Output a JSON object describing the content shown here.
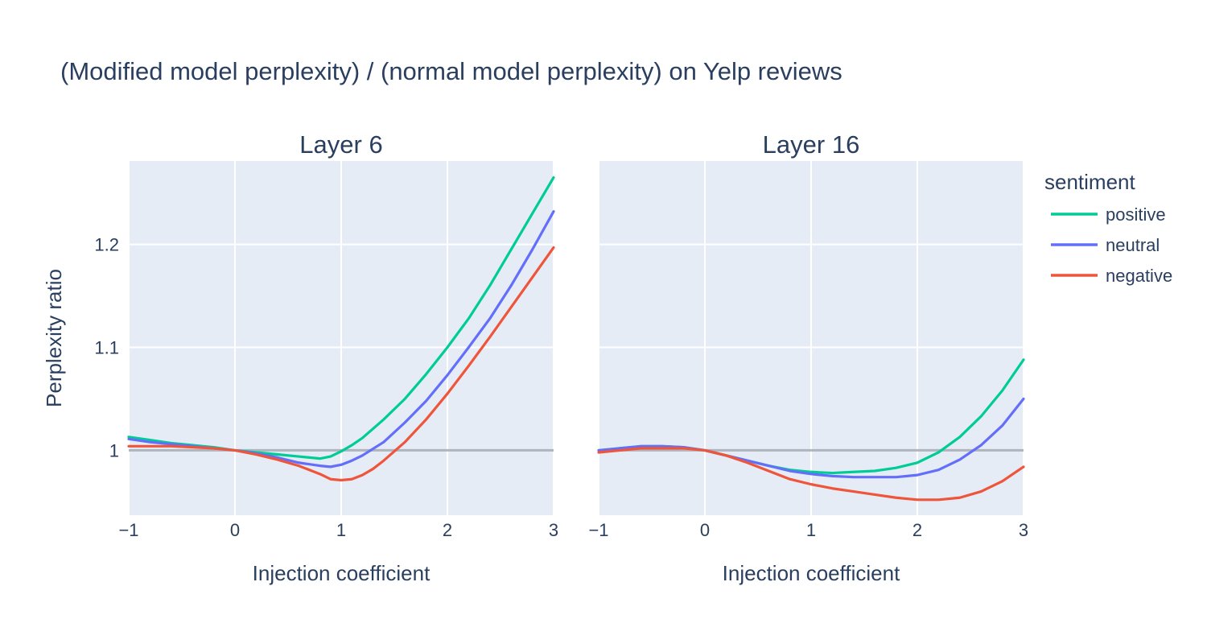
{
  "chart_data": {
    "type": "line",
    "title": "(Modified model perplexity) / (normal model perplexity) on Yelp reviews",
    "ylabel": "Perplexity ratio",
    "xlabel": "Injection coefficient",
    "legend": {
      "title": "sentiment",
      "placement": "top-right",
      "entries": [
        "positive",
        "neutral",
        "negative"
      ]
    },
    "colors": {
      "positive": "#00cc96",
      "neutral": "#636efa",
      "negative": "#ef553b",
      "reference": "#9ea3ad"
    },
    "xlim": [
      -1,
      3
    ],
    "ylim": [
      0.937,
      1.281
    ],
    "x_ticks": [
      -1,
      0,
      1,
      2,
      3
    ],
    "x_tick_labels": [
      "−1",
      "0",
      "1",
      "2",
      "3"
    ],
    "y_ticks": [
      1,
      1.1,
      1.2
    ],
    "y_tick_labels": [
      "1",
      "1.1",
      "1.2"
    ],
    "reference_line": 1.0,
    "panels": [
      {
        "title": "Layer 6",
        "xlabel": "Injection coefficient",
        "series": [
          {
            "name": "positive",
            "x": [
              -1,
              -0.8,
              -0.6,
              -0.4,
              -0.2,
              0,
              0.2,
              0.4,
              0.6,
              0.8,
              0.9,
              1.0,
              1.1,
              1.2,
              1.3,
              1.4,
              1.6,
              1.8,
              2.0,
              2.2,
              2.4,
              2.6,
              2.8,
              3.0
            ],
            "values": [
              1.013,
              1.01,
              1.007,
              1.005,
              1.003,
              1.0,
              0.998,
              0.996,
              0.994,
              0.992,
              0.994,
              0.999,
              1.005,
              1.012,
              1.021,
              1.03,
              1.05,
              1.074,
              1.1,
              1.128,
              1.16,
              1.195,
              1.23,
              1.265
            ]
          },
          {
            "name": "neutral",
            "x": [
              -1,
              -0.8,
              -0.6,
              -0.4,
              -0.2,
              0,
              0.2,
              0.4,
              0.6,
              0.8,
              0.9,
              1.0,
              1.1,
              1.2,
              1.4,
              1.6,
              1.8,
              2.0,
              2.2,
              2.4,
              2.6,
              2.8,
              3.0
            ],
            "values": [
              1.011,
              1.008,
              1.006,
              1.004,
              1.002,
              1.0,
              0.997,
              0.993,
              0.988,
              0.985,
              0.984,
              0.986,
              0.99,
              0.995,
              1.008,
              1.027,
              1.048,
              1.073,
              1.1,
              1.128,
              1.16,
              1.195,
              1.232
            ]
          },
          {
            "name": "negative",
            "x": [
              -1,
              -0.8,
              -0.6,
              -0.4,
              -0.2,
              0,
              0.2,
              0.4,
              0.6,
              0.8,
              0.9,
              1.0,
              1.1,
              1.2,
              1.3,
              1.4,
              1.6,
              1.8,
              2.0,
              2.2,
              2.4,
              2.6,
              2.8,
              3.0
            ],
            "values": [
              1.004,
              1.004,
              1.004,
              1.003,
              1.002,
              1.0,
              0.996,
              0.991,
              0.985,
              0.977,
              0.972,
              0.971,
              0.972,
              0.976,
              0.982,
              0.99,
              1.008,
              1.03,
              1.055,
              1.082,
              1.11,
              1.139,
              1.168,
              1.197
            ]
          }
        ]
      },
      {
        "title": "Layer 16",
        "xlabel": "Injection coefficient",
        "series": [
          {
            "name": "positive",
            "x": [
              -1,
              -0.8,
              -0.6,
              -0.4,
              -0.2,
              0,
              0.2,
              0.4,
              0.6,
              0.8,
              1.0,
              1.2,
              1.4,
              1.6,
              1.8,
              2.0,
              2.2,
              2.4,
              2.6,
              2.8,
              3.0
            ],
            "values": [
              1.0,
              1.002,
              1.004,
              1.004,
              1.003,
              1.0,
              0.995,
              0.99,
              0.985,
              0.981,
              0.979,
              0.978,
              0.979,
              0.98,
              0.983,
              0.988,
              0.998,
              1.013,
              1.033,
              1.058,
              1.088
            ]
          },
          {
            "name": "neutral",
            "x": [
              -1,
              -0.8,
              -0.6,
              -0.4,
              -0.2,
              0,
              0.2,
              0.4,
              0.6,
              0.8,
              1.0,
              1.2,
              1.4,
              1.6,
              1.8,
              2.0,
              2.2,
              2.4,
              2.6,
              2.8,
              3.0
            ],
            "values": [
              1.0,
              1.002,
              1.004,
              1.004,
              1.003,
              1.0,
              0.995,
              0.99,
              0.985,
              0.98,
              0.977,
              0.975,
              0.974,
              0.974,
              0.974,
              0.976,
              0.981,
              0.991,
              1.005,
              1.024,
              1.05
            ]
          },
          {
            "name": "negative",
            "x": [
              -1,
              -0.8,
              -0.6,
              -0.4,
              -0.2,
              0,
              0.2,
              0.4,
              0.6,
              0.8,
              1.0,
              1.2,
              1.4,
              1.6,
              1.8,
              2.0,
              2.2,
              2.4,
              2.6,
              2.8,
              3.0
            ],
            "values": [
              0.998,
              1.0,
              1.002,
              1.002,
              1.002,
              1.0,
              0.995,
              0.988,
              0.98,
              0.972,
              0.967,
              0.963,
              0.96,
              0.957,
              0.954,
              0.952,
              0.952,
              0.954,
              0.96,
              0.97,
              0.984
            ]
          }
        ]
      }
    ]
  }
}
